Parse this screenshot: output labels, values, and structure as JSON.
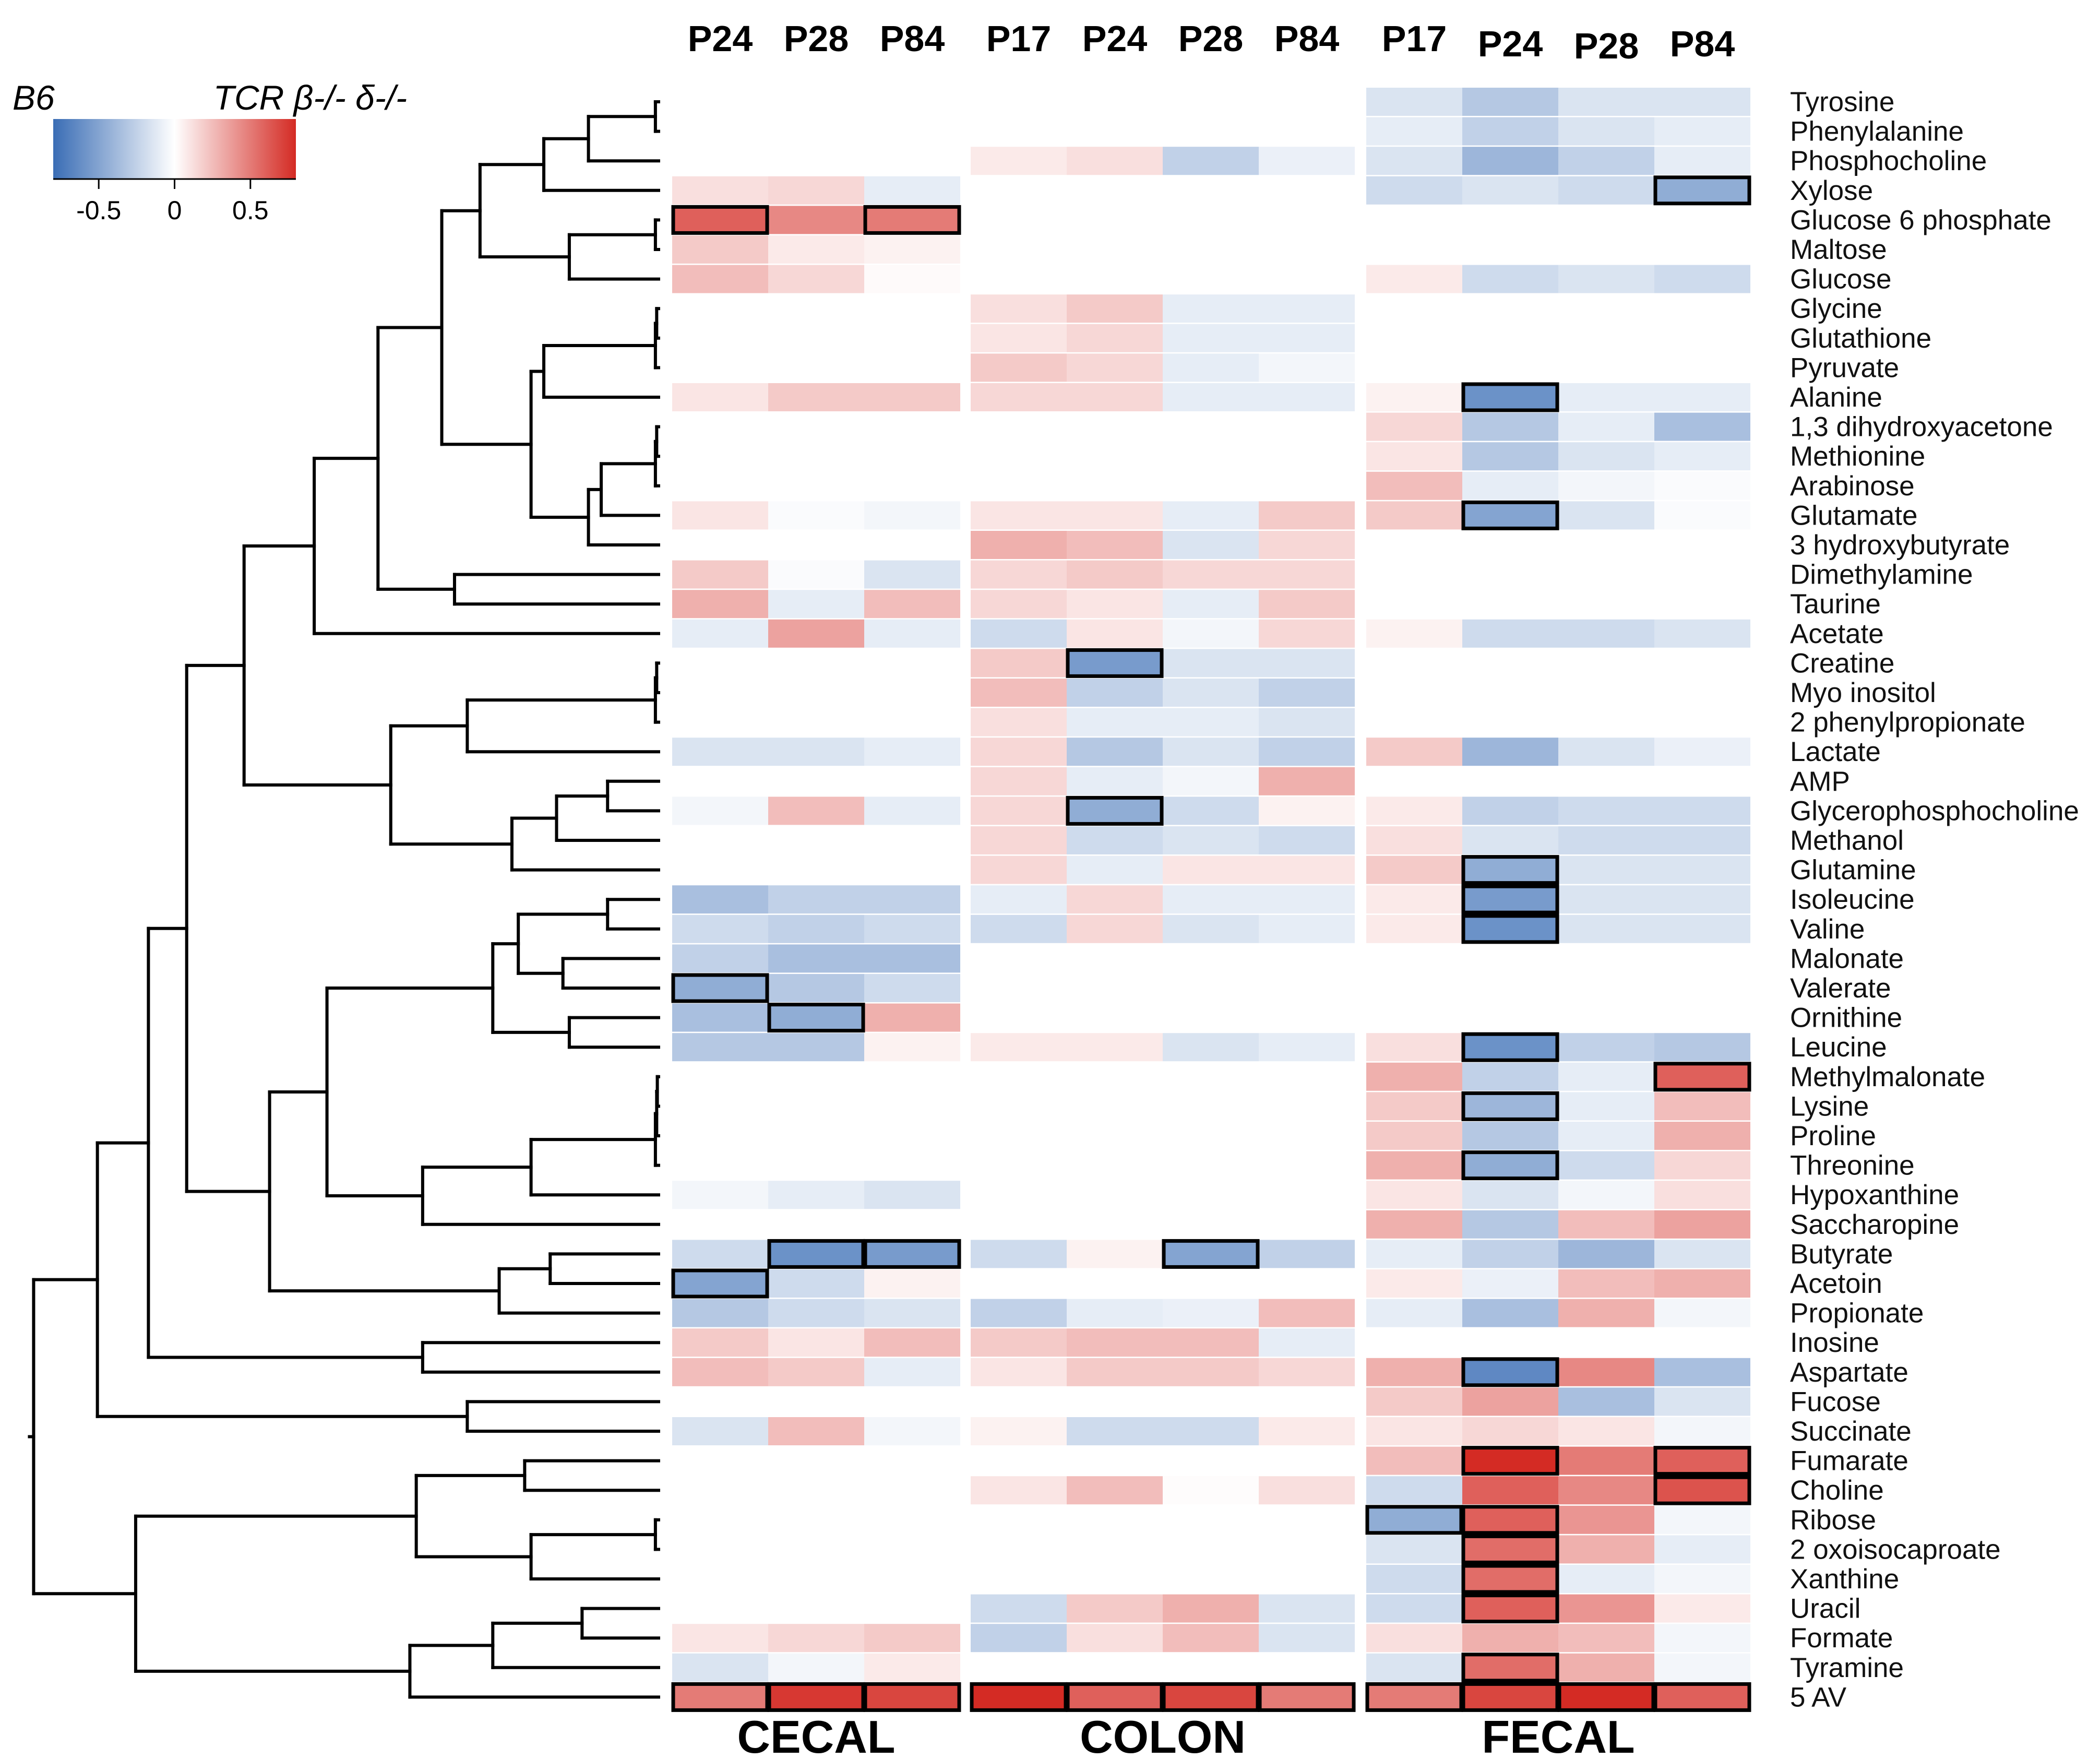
{
  "chart_data": {
    "type": "heatmap",
    "legend": {
      "title_low": "B6",
      "title_high": "TCR β-/- δ-/-",
      "ticks": [
        "-0.5",
        "0",
        "0.5"
      ],
      "range": [
        -0.8,
        0.8
      ],
      "colors": {
        "low": "#3a6db5",
        "mid": "#ffffff",
        "high": "#d42b24"
      }
    },
    "tissues": [
      {
        "label": "CECAL",
        "columns": [
          "P24",
          "P28",
          "P84"
        ]
      },
      {
        "label": "COLON",
        "columns": [
          "P17",
          "P24",
          "P28",
          "P84"
        ]
      },
      {
        "label": "FECAL",
        "columns": [
          "P17",
          "P24",
          "P28",
          "P84"
        ]
      }
    ],
    "rows": [
      "Tyrosine",
      "Phenylalanine",
      "Phosphocholine",
      "Xylose",
      "Glucose 6 phosphate",
      "Maltose",
      "Glucose",
      "Glycine",
      "Glutathione",
      "Pyruvate",
      "Alanine",
      "1,3 dihydroxyacetone",
      "Methionine",
      "Arabinose",
      "Glutamate",
      "3 hydroxybutyrate",
      "Dimethylamine",
      "Taurine",
      "Acetate",
      "Creatine",
      "Myo inositol",
      "2 phenylpropionate",
      "Lactate",
      "AMP",
      "Glycerophosphocholine",
      "Methanol",
      "Glutamine",
      "Isoleucine",
      "Valine",
      "Malonate",
      "Valerate",
      "Ornithine",
      "Leucine",
      "Methylmalonate",
      "Lysine",
      "Proline",
      "Threonine",
      "Hypoxanthine",
      "Saccharopine",
      "Butyrate",
      "Acetoin",
      "Propionate",
      "Inosine",
      "Aspartate",
      "Fucose",
      "Succinate",
      "Fumarate",
      "Choline",
      "Ribose",
      "2 oxoisocaproate",
      "Xanthine",
      "Uracil",
      "Formate",
      "Tyramine",
      "5 AV"
    ],
    "values": [
      [
        null,
        null,
        null,
        null,
        null,
        null,
        null,
        -0.15,
        -0.3,
        -0.15,
        -0.15
      ],
      [
        null,
        null,
        null,
        null,
        null,
        null,
        null,
        -0.1,
        -0.25,
        -0.15,
        -0.1
      ],
      [
        null,
        null,
        null,
        0.08,
        0.12,
        -0.25,
        -0.08,
        -0.15,
        -0.4,
        -0.25,
        -0.1
      ],
      [
        0.12,
        0.15,
        -0.1,
        null,
        null,
        null,
        null,
        -0.2,
        -0.15,
        -0.2,
        -0.45
      ],
      [
        0.6,
        0.45,
        0.5,
        null,
        null,
        null,
        null,
        null,
        null,
        null,
        null
      ],
      [
        0.2,
        0.08,
        0.05,
        null,
        null,
        null,
        null,
        null,
        null,
        null,
        null
      ],
      [
        0.25,
        0.15,
        0.02,
        null,
        null,
        null,
        null,
        0.08,
        -0.2,
        -0.15,
        -0.2
      ],
      [
        null,
        null,
        null,
        0.12,
        0.2,
        -0.1,
        -0.1,
        null,
        null,
        null,
        null
      ],
      [
        null,
        null,
        null,
        0.1,
        0.15,
        -0.1,
        -0.1,
        null,
        null,
        null,
        null
      ],
      [
        null,
        null,
        null,
        0.2,
        0.15,
        -0.1,
        -0.05,
        null,
        null,
        null,
        null
      ],
      [
        0.1,
        0.2,
        0.2,
        0.15,
        0.15,
        -0.1,
        -0.1,
        0.05,
        -0.6,
        -0.1,
        -0.1
      ],
      [
        null,
        null,
        null,
        null,
        null,
        null,
        null,
        0.15,
        -0.3,
        -0.1,
        -0.35
      ],
      [
        null,
        null,
        null,
        null,
        null,
        null,
        null,
        0.1,
        -0.3,
        -0.15,
        -0.1
      ],
      [
        null,
        null,
        null,
        null,
        null,
        null,
        null,
        0.25,
        -0.1,
        -0.05,
        -0.02
      ],
      [
        0.1,
        -0.02,
        -0.05,
        0.1,
        0.1,
        -0.1,
        0.2,
        0.2,
        -0.5,
        -0.15,
        -0.02
      ],
      [
        null,
        null,
        null,
        0.3,
        0.25,
        -0.15,
        0.15,
        null,
        null,
        null,
        null
      ],
      [
        0.2,
        -0.02,
        -0.15,
        0.15,
        0.2,
        0.15,
        0.15,
        null,
        null,
        null,
        null
      ],
      [
        0.3,
        -0.1,
        0.25,
        0.15,
        0.1,
        -0.1,
        0.2,
        null,
        null,
        null,
        null
      ],
      [
        -0.1,
        0.35,
        -0.1,
        -0.2,
        0.1,
        -0.05,
        0.15,
        0.05,
        -0.2,
        -0.2,
        -0.15
      ],
      [
        null,
        null,
        null,
        0.2,
        -0.55,
        -0.15,
        -0.15,
        null,
        null,
        null,
        null
      ],
      [
        null,
        null,
        null,
        0.25,
        -0.25,
        -0.15,
        -0.25,
        null,
        null,
        null,
        null
      ],
      [
        null,
        null,
        null,
        0.12,
        -0.1,
        -0.1,
        -0.15,
        null,
        null,
        null,
        null
      ],
      [
        -0.15,
        -0.15,
        -0.1,
        0.15,
        -0.3,
        -0.15,
        -0.25,
        0.2,
        -0.4,
        -0.15,
        -0.08
      ],
      [
        null,
        null,
        null,
        0.15,
        -0.1,
        -0.05,
        0.3,
        null,
        null,
        null,
        null
      ],
      [
        -0.05,
        0.25,
        -0.1,
        0.15,
        -0.45,
        -0.2,
        0.05,
        0.08,
        -0.25,
        -0.2,
        -0.2
      ],
      [
        null,
        null,
        null,
        0.15,
        -0.2,
        -0.15,
        -0.2,
        0.12,
        -0.15,
        -0.2,
        -0.2
      ],
      [
        null,
        null,
        null,
        0.15,
        -0.1,
        0.1,
        0.1,
        0.2,
        -0.45,
        -0.15,
        -0.15
      ],
      [
        -0.35,
        -0.25,
        -0.25,
        -0.1,
        0.15,
        -0.1,
        -0.1,
        0.08,
        -0.55,
        -0.15,
        -0.15
      ],
      [
        -0.2,
        -0.25,
        -0.2,
        -0.2,
        0.15,
        -0.15,
        -0.1,
        0.08,
        -0.6,
        -0.15,
        -0.15
      ],
      [
        -0.25,
        -0.35,
        -0.35,
        null,
        null,
        null,
        null,
        null,
        null,
        null,
        null
      ],
      [
        -0.45,
        -0.3,
        -0.2,
        null,
        null,
        null,
        null,
        null,
        null,
        null,
        null
      ],
      [
        -0.35,
        -0.45,
        0.3,
        null,
        null,
        null,
        null,
        null,
        null,
        null,
        null
      ],
      [
        -0.3,
        -0.3,
        0.05,
        0.08,
        0.08,
        -0.15,
        -0.1,
        0.12,
        -0.6,
        -0.25,
        -0.3
      ],
      [
        null,
        null,
        null,
        null,
        null,
        null,
        null,
        0.3,
        -0.25,
        -0.1,
        0.6
      ],
      [
        null,
        null,
        null,
        null,
        null,
        null,
        null,
        0.2,
        -0.4,
        -0.1,
        0.25
      ],
      [
        null,
        null,
        null,
        null,
        null,
        null,
        null,
        0.2,
        -0.3,
        -0.1,
        0.3
      ],
      [
        null,
        null,
        null,
        null,
        null,
        null,
        null,
        0.3,
        -0.45,
        -0.2,
        0.15
      ],
      [
        -0.05,
        -0.1,
        -0.15,
        null,
        null,
        null,
        null,
        0.1,
        -0.15,
        -0.05,
        0.12
      ],
      [
        null,
        null,
        null,
        null,
        null,
        null,
        null,
        0.3,
        -0.3,
        0.25,
        0.35
      ],
      [
        -0.2,
        -0.6,
        -0.55,
        -0.2,
        0.05,
        -0.5,
        -0.25,
        -0.1,
        -0.25,
        -0.4,
        -0.15
      ],
      [
        -0.5,
        -0.2,
        0.05,
        null,
        null,
        null,
        null,
        0.08,
        -0.08,
        0.25,
        0.3
      ],
      [
        -0.3,
        -0.2,
        -0.15,
        -0.25,
        -0.1,
        -0.08,
        0.25,
        -0.1,
        -0.35,
        0.3,
        -0.05
      ],
      [
        0.2,
        0.1,
        0.25,
        0.2,
        0.25,
        0.25,
        -0.1,
        null,
        null,
        null,
        null
      ],
      [
        0.25,
        0.2,
        -0.1,
        0.1,
        0.2,
        0.2,
        0.15,
        0.3,
        -0.65,
        0.45,
        -0.35
      ],
      [
        null,
        null,
        null,
        null,
        null,
        null,
        null,
        0.2,
        0.35,
        -0.35,
        -0.15
      ],
      [
        -0.15,
        0.25,
        -0.05,
        0.05,
        -0.2,
        -0.2,
        0.08,
        0.1,
        0.15,
        0.1,
        -0.05
      ],
      [
        null,
        null,
        null,
        null,
        null,
        null,
        null,
        0.25,
        0.8,
        0.5,
        0.6
      ],
      [
        null,
        null,
        null,
        0.1,
        0.25,
        0.01,
        0.12,
        -0.2,
        0.6,
        0.45,
        0.65
      ],
      [
        null,
        null,
        null,
        null,
        null,
        null,
        null,
        -0.45,
        0.6,
        0.4,
        -0.05
      ],
      [
        null,
        null,
        null,
        null,
        null,
        null,
        null,
        -0.15,
        0.55,
        0.3,
        -0.1
      ],
      [
        null,
        null,
        null,
        null,
        null,
        null,
        null,
        -0.2,
        0.55,
        -0.1,
        -0.05
      ],
      [
        null,
        null,
        null,
        -0.2,
        0.2,
        0.3,
        -0.15,
        -0.2,
        0.6,
        0.4,
        0.08
      ],
      [
        0.1,
        0.15,
        0.2,
        -0.25,
        0.12,
        0.25,
        -0.15,
        0.12,
        0.3,
        0.25,
        -0.05
      ],
      [
        -0.15,
        -0.05,
        0.08,
        null,
        null,
        null,
        null,
        -0.15,
        0.55,
        0.3,
        -0.05
      ],
      [
        0.5,
        0.75,
        0.7,
        0.8,
        0.6,
        0.7,
        0.5,
        0.5,
        0.7,
        0.8,
        0.6
      ]
    ],
    "significant": [
      [
        3,
        10
      ],
      [
        4,
        0
      ],
      [
        4,
        2
      ],
      [
        10,
        8
      ],
      [
        14,
        8
      ],
      [
        19,
        4
      ],
      [
        24,
        4
      ],
      [
        26,
        8
      ],
      [
        27,
        8
      ],
      [
        28,
        8
      ],
      [
        30,
        0
      ],
      [
        31,
        1
      ],
      [
        32,
        8
      ],
      [
        33,
        10
      ],
      [
        34,
        8
      ],
      [
        36,
        8
      ],
      [
        39,
        1
      ],
      [
        39,
        2
      ],
      [
        39,
        5
      ],
      [
        40,
        0
      ],
      [
        43,
        8
      ],
      [
        46,
        8
      ],
      [
        46,
        10
      ],
      [
        47,
        10
      ],
      [
        48,
        7
      ],
      [
        48,
        8
      ],
      [
        49,
        8
      ],
      [
        50,
        8
      ],
      [
        51,
        8
      ],
      [
        53,
        8
      ],
      [
        54,
        0
      ],
      [
        54,
        1
      ],
      [
        54,
        2
      ],
      [
        54,
        3
      ],
      [
        54,
        4
      ],
      [
        54,
        5
      ],
      [
        54,
        6
      ],
      [
        54,
        7
      ],
      [
        54,
        8
      ],
      [
        54,
        9
      ],
      [
        54,
        10
      ]
    ],
    "dendrogram": {
      "type": "hierarchical clustering of rows",
      "row_order": "as rows"
    }
  }
}
